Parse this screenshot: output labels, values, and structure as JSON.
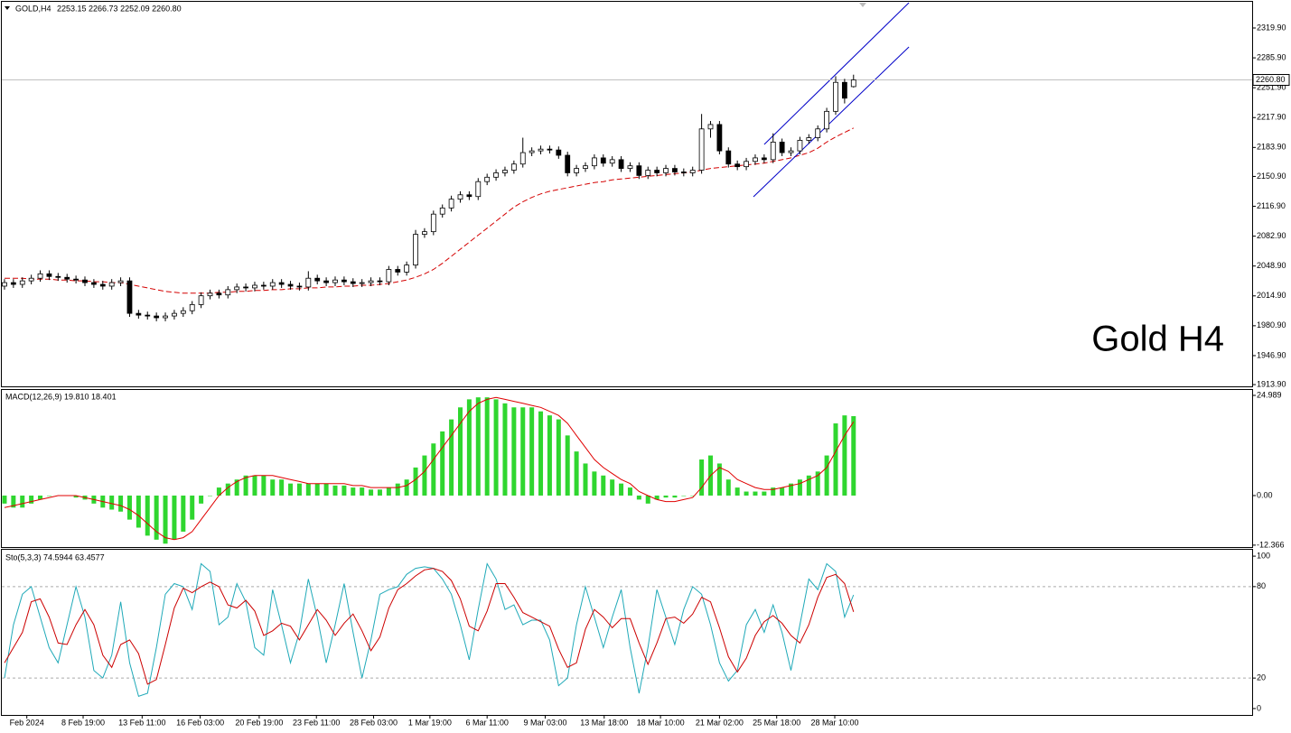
{
  "chart_data": [
    {
      "type": "candlestick",
      "title": "GOLD,H4",
      "subtitle": "2253.15 2266.73 2252.09 2260.80",
      "annotation": "Gold H4",
      "xlim": [
        -0.3,
        139.6
      ],
      "ylim": [
        1911.9,
        2349.7
      ],
      "yticks": [
        {
          "value": 2319.9,
          "label": "2319.90"
        },
        {
          "value": 2285.9,
          "label": "2285.90"
        },
        {
          "value": 2251.9,
          "label": "2251.90"
        },
        {
          "value": 2217.9,
          "label": "2217.90"
        },
        {
          "value": 2183.9,
          "label": "2183.90"
        },
        {
          "value": 2150.9,
          "label": "2150.90"
        },
        {
          "value": 2116.9,
          "label": "2116.90"
        },
        {
          "value": 2082.9,
          "label": "2082.90"
        },
        {
          "value": 2048.9,
          "label": "2048.90"
        },
        {
          "value": 2014.9,
          "label": "2014.90"
        },
        {
          "value": 1980.9,
          "label": "1980.90"
        },
        {
          "value": 1946.9,
          "label": "1946.90"
        },
        {
          "value": 1913.9,
          "label": "1913.90"
        }
      ],
      "open": [
        2026,
        2030,
        2028,
        2032,
        2035,
        2040,
        2037,
        2036,
        2034,
        2033,
        2030,
        2028,
        2026,
        2030,
        2032,
        1995,
        1993,
        1992,
        1990,
        1992,
        1995,
        1998,
        2005,
        2015,
        2018,
        2016,
        2022,
        2025,
        2024,
        2027,
        2026,
        2030,
        2028,
        2026,
        2025,
        2035,
        2032,
        2030,
        2033,
        2031,
        2029,
        2030,
        2032,
        2031,
        2045,
        2042,
        2050,
        2085,
        2088,
        2108,
        2115,
        2125,
        2130,
        2128,
        2145,
        2150,
        2155,
        2158,
        2165,
        2178,
        2180,
        2182,
        2181,
        2175,
        2155,
        2160,
        2163,
        2172,
        2166,
        2170,
        2160,
        2163,
        2152,
        2158,
        2155,
        2160,
        2156,
        2155,
        2158,
        2205,
        2210,
        2180,
        2165,
        2162,
        2168,
        2172,
        2170,
        2190,
        2178,
        2180,
        2192,
        2195,
        2205,
        2225,
        2258,
        2253.15
      ],
      "high": [
        2034,
        2034,
        2036,
        2039,
        2044,
        2044,
        2041,
        2040,
        2038,
        2037,
        2034,
        2032,
        2034,
        2036,
        2036,
        1999,
        1997,
        1996,
        1996,
        1999,
        2002,
        2009,
        2019,
        2022,
        2022,
        2026,
        2029,
        2029,
        2031,
        2031,
        2034,
        2034,
        2032,
        2030,
        2043,
        2039,
        2036,
        2037,
        2037,
        2035,
        2034,
        2036,
        2036,
        2049,
        2049,
        2054,
        2090,
        2092,
        2112,
        2119,
        2129,
        2134,
        2134,
        2149,
        2154,
        2159,
        2162,
        2169,
        2195,
        2184,
        2186,
        2186,
        2185,
        2179,
        2164,
        2167,
        2176,
        2176,
        2174,
        2174,
        2167,
        2167,
        2162,
        2162,
        2164,
        2164,
        2160,
        2162,
        2222,
        2214,
        2214,
        2184,
        2169,
        2172,
        2176,
        2176,
        2200,
        2194,
        2184,
        2196,
        2199,
        2209,
        2229,
        2265,
        2262,
        2266.73
      ],
      "low": [
        2022,
        2024,
        2024,
        2028,
        2031,
        2033,
        2032,
        2030,
        2029,
        2026,
        2024,
        2022,
        2022,
        2026,
        1991,
        1989,
        1988,
        1986,
        1986,
        1988,
        1991,
        1994,
        2001,
        2011,
        2012,
        2012,
        2018,
        2020,
        2020,
        2022,
        2022,
        2024,
        2022,
        2021,
        2021,
        2028,
        2026,
        2026,
        2027,
        2025,
        2025,
        2026,
        2027,
        2027,
        2038,
        2038,
        2046,
        2081,
        2084,
        2104,
        2111,
        2121,
        2124,
        2124,
        2141,
        2146,
        2151,
        2154,
        2161,
        2174,
        2176,
        2177,
        2171,
        2151,
        2151,
        2156,
        2159,
        2162,
        2162,
        2156,
        2156,
        2148,
        2148,
        2151,
        2151,
        2152,
        2151,
        2151,
        2154,
        2195,
        2176,
        2161,
        2158,
        2158,
        2164,
        2166,
        2166,
        2174,
        2174,
        2176,
        2188,
        2191,
        2201,
        2221,
        2234,
        2252.09
      ],
      "close": [
        2030,
        2028,
        2032,
        2035,
        2040,
        2037,
        2036,
        2034,
        2033,
        2030,
        2028,
        2026,
        2030,
        2032,
        1995,
        1993,
        1992,
        1990,
        1992,
        1995,
        1998,
        2005,
        2015,
        2018,
        2016,
        2022,
        2025,
        2024,
        2027,
        2026,
        2030,
        2028,
        2026,
        2025,
        2035,
        2032,
        2030,
        2033,
        2031,
        2029,
        2030,
        2032,
        2031,
        2045,
        2042,
        2050,
        2085,
        2088,
        2108,
        2115,
        2125,
        2130,
        2128,
        2145,
        2150,
        2155,
        2158,
        2165,
        2178,
        2180,
        2182,
        2181,
        2175,
        2155,
        2160,
        2163,
        2172,
        2166,
        2170,
        2160,
        2163,
        2152,
        2158,
        2155,
        2160,
        2156,
        2155,
        2158,
        2205,
        2210,
        2180,
        2165,
        2162,
        2168,
        2172,
        2170,
        2190,
        2178,
        2180,
        2192,
        2195,
        2205,
        2225,
        2258,
        2240,
        2260.8
      ],
      "up_color": "#ffffff",
      "down_color": "#000000",
      "ma": {
        "color": "#d40000",
        "values": [
          2035,
          2035,
          2035,
          2034,
          2034,
          2034,
          2033,
          2033,
          2032,
          2032,
          2031,
          2031,
          2030,
          2030,
          2028,
          2026,
          2024,
          2022,
          2020,
          2019,
          2018,
          2018,
          2018,
          2018,
          2019,
          2019,
          2020,
          2020,
          2021,
          2021,
          2022,
          2022,
          2023,
          2023,
          2024,
          2024,
          2025,
          2025,
          2026,
          2026,
          2027,
          2027,
          2028,
          2029,
          2031,
          2033,
          2036,
          2040,
          2045,
          2052,
          2060,
          2068,
          2076,
          2084,
          2092,
          2100,
          2108,
          2116,
          2122,
          2127,
          2131,
          2134,
          2136,
          2138,
          2140,
          2142,
          2144,
          2145,
          2147,
          2148,
          2149,
          2150,
          2151,
          2152,
          2153,
          2154,
          2155,
          2156,
          2158,
          2160,
          2161,
          2162,
          2163,
          2164,
          2165,
          2166,
          2168,
          2170,
          2172,
          2175,
          2178,
          2183,
          2190,
          2196,
          2201,
          2206
        ]
      },
      "channel": {
        "color": "#0000c8",
        "lines": [
          {
            "x": [
              85,
              101.2
            ],
            "y": [
              2187.3,
              2348.7
            ]
          },
          {
            "x": [
              83.8,
              101.2
            ],
            "y": [
              2127.7,
              2298.3
            ]
          }
        ]
      },
      "last_price": {
        "value": 2260.8,
        "label": "2260.80"
      }
    },
    {
      "type": "macd",
      "title": "MACD(12,26,9) 19.810 18.401",
      "xlim": [
        -0.3,
        139.6
      ],
      "ylim": [
        -12.84,
        26.34
      ],
      "yticks": [
        24.989,
        {
          "value": 0,
          "label": "0.00"
        },
        -12.366
      ],
      "histogram": {
        "color": "#2fd62f",
        "values": [
          -2,
          -3,
          -3,
          -2,
          -1,
          0,
          0,
          0,
          -0.5,
          -1,
          -2,
          -3,
          -3.5,
          -4,
          -6,
          -8,
          -10,
          -11,
          -12,
          -11,
          -9,
          -6,
          -2,
          0,
          2,
          3,
          4,
          5,
          5,
          5,
          4,
          4,
          3,
          3,
          3,
          3,
          3,
          2.5,
          2.5,
          2,
          2,
          1.5,
          1.5,
          2,
          3,
          4,
          7,
          10,
          13,
          16,
          19,
          22,
          24,
          24.5,
          24.5,
          24,
          23,
          22,
          22,
          22,
          21,
          20,
          19,
          15,
          11,
          8,
          6,
          5,
          4,
          3,
          2,
          -1,
          -2,
          -1,
          -0.5,
          -0.5,
          0,
          0,
          9,
          10,
          8,
          4,
          2,
          1,
          1,
          1,
          2,
          2,
          3,
          4,
          5,
          6,
          10,
          18,
          20,
          19.81
        ]
      },
      "signal": {
        "color": "#e00000",
        "values": [
          -3,
          -2.5,
          -2,
          -1.5,
          -1,
          -0.5,
          0,
          0,
          0,
          -0.5,
          -1,
          -1.5,
          -2,
          -2.5,
          -3.5,
          -5,
          -7,
          -9,
          -10.5,
          -11,
          -10.5,
          -9,
          -6,
          -3,
          0,
          2,
          3.5,
          4.5,
          5,
          5,
          5,
          4.5,
          4,
          3.5,
          3,
          3,
          3,
          3,
          3,
          2.5,
          2.5,
          2,
          2,
          2,
          2,
          2.5,
          4,
          6,
          9,
          12,
          15,
          18,
          21,
          23,
          24,
          24.5,
          24,
          23.5,
          23,
          22.5,
          22,
          21,
          20,
          18,
          15,
          12,
          9,
          7,
          5.5,
          4,
          3,
          1,
          0,
          -1,
          -1.5,
          -1.5,
          -1,
          -0.5,
          2,
          5,
          7,
          6,
          4,
          3,
          2,
          1.5,
          1.5,
          2,
          2.5,
          3,
          4,
          5,
          7,
          11,
          15,
          18.401
        ]
      }
    },
    {
      "type": "stochastic",
      "title": "Sto(5,3,3) 74.5944 63.4577",
      "xlim": [
        -0.3,
        139.6
      ],
      "ylim": [
        -4.2,
        104.2
      ],
      "yticks": [
        100,
        80,
        20,
        0
      ],
      "levels": [
        80,
        20
      ],
      "xticks": [
        {
          "value": 2.5,
          "label": "Feb 2024"
        },
        {
          "value": 8.8,
          "label": "8 Feb 19:00"
        },
        {
          "value": 15.4,
          "label": "13 Feb 11:00"
        },
        {
          "value": 21.9,
          "label": "16 Feb 03:00"
        },
        {
          "value": 28.5,
          "label": "20 Feb 19:00"
        },
        {
          "value": 34.9,
          "label": "23 Feb 11:00"
        },
        {
          "value": 41.3,
          "label": "28 Feb 03:00"
        },
        {
          "value": 47.6,
          "label": "1 Mar 19:00"
        },
        {
          "value": 54,
          "label": "6 Mar 11:00"
        },
        {
          "value": 60.5,
          "label": "9 Mar 03:00"
        },
        {
          "value": 67.1,
          "label": "13 Mar 18:00"
        },
        {
          "value": 73.4,
          "label": "18 Mar 10:00"
        },
        {
          "value": 80,
          "label": "21 Mar 02:00"
        },
        {
          "value": 86.4,
          "label": "25 Mar 18:00"
        },
        {
          "value": 92.9,
          "label": "28 Mar 10:00"
        }
      ],
      "k": {
        "color": "#1fa9b8",
        "values": [
          20,
          55,
          75,
          80,
          60,
          40,
          30,
          55,
          80,
          60,
          25,
          20,
          35,
          70,
          30,
          8,
          10,
          40,
          75,
          82,
          80,
          65,
          95,
          90,
          55,
          60,
          82,
          70,
          40,
          35,
          78,
          55,
          30,
          50,
          85,
          60,
          30,
          55,
          82,
          50,
          20,
          45,
          75,
          78,
          80,
          88,
          92,
          93,
          92,
          85,
          75,
          55,
          32,
          65,
          95,
          85,
          65,
          68,
          55,
          58,
          58,
          45,
          15,
          20,
          55,
          80,
          60,
          40,
          60,
          78,
          40,
          10,
          40,
          78,
          60,
          42,
          65,
          80,
          75,
          55,
          30,
          18,
          25,
          55,
          65,
          50,
          68,
          50,
          25,
          55,
          85,
          78,
          95,
          90,
          60,
          74.5944
        ]
      },
      "d": {
        "color": "#cc0000",
        "values": [
          30,
          40,
          50,
          70,
          72,
          60,
          43,
          42,
          55,
          65,
          55,
          35,
          27,
          42,
          45,
          36,
          16,
          19,
          42,
          66,
          79,
          76,
          80,
          83,
          80,
          68,
          66,
          71,
          64,
          48,
          51,
          56,
          54,
          45,
          55,
          65,
          58,
          48,
          56,
          62,
          51,
          38,
          47,
          66,
          78,
          82,
          87,
          91,
          92,
          90,
          84,
          72,
          54,
          51,
          64,
          82,
          82,
          73,
          63,
          60,
          57,
          54,
          39,
          27,
          30,
          52,
          65,
          60,
          53,
          59,
          59,
          43,
          29,
          43,
          59,
          60,
          56,
          62,
          73,
          70,
          53,
          34,
          24,
          33,
          48,
          57,
          61,
          56,
          48,
          43,
          55,
          73,
          86,
          88,
          82,
          63.4577
        ]
      }
    }
  ]
}
